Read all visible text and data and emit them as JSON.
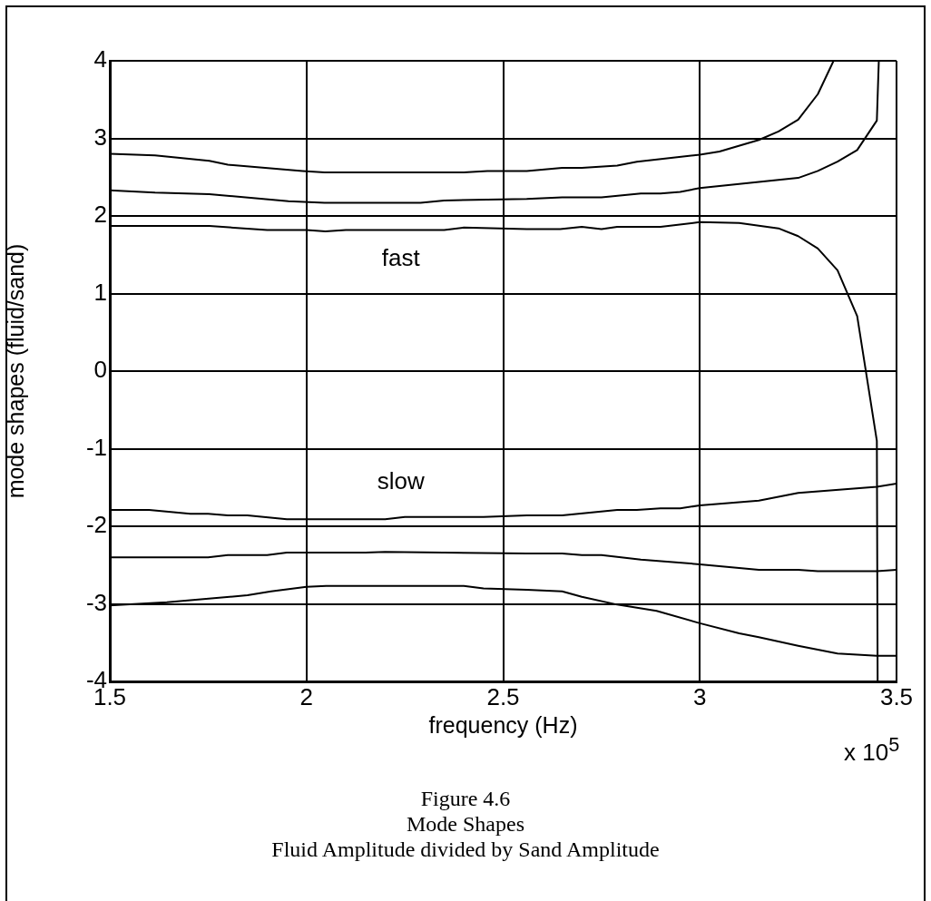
{
  "chart_data": {
    "type": "line",
    "xlabel": "frequency (Hz)",
    "ylabel": "mode shapes (fluid/sand)",
    "xlim": [
      1.5,
      3.5
    ],
    "xticks": [
      1.5,
      2,
      2.5,
      3,
      3.5
    ],
    "ylim": [
      -4,
      4
    ],
    "yticks": [
      -4,
      -3,
      -2,
      -1,
      0,
      1,
      2,
      3,
      4
    ],
    "grid": true,
    "legend": false,
    "marker": "none",
    "line_style": "solid",
    "series": [
      {
        "color": "#000000",
        "x": [
          1.5,
          1.615,
          1.753,
          1.8,
          1.99,
          2.046,
          2.4,
          2.46,
          2.56,
          2.65,
          2.7,
          2.79,
          2.84,
          3.0,
          3.05,
          3.15,
          3.2,
          3.25,
          3.3,
          3.34
        ],
        "values": [
          2.8,
          2.78,
          2.71,
          2.66,
          2.58,
          2.56,
          2.56,
          2.58,
          2.58,
          2.62,
          2.62,
          2.65,
          2.7,
          2.79,
          2.83,
          2.98,
          3.09,
          3.24,
          3.57,
          4
        ]
      },
      {
        "color": "#000000",
        "x": [
          1.5,
          1.615,
          1.753,
          1.954,
          2.046,
          2.29,
          2.35,
          2.56,
          2.65,
          2.75,
          2.85,
          2.9,
          2.95,
          3.0,
          3.25,
          3.3,
          3.35,
          3.4,
          3.45,
          3.455
        ],
        "values": [
          2.33,
          2.3,
          2.28,
          2.19,
          2.17,
          2.17,
          2.2,
          2.22,
          2.24,
          2.24,
          2.29,
          2.29,
          2.31,
          2.36,
          2.49,
          2.58,
          2.7,
          2.85,
          3.23,
          4
        ]
      },
      {
        "color": "#000000",
        "x": [
          1.5,
          1.753,
          1.9,
          2.0,
          2.048,
          2.1,
          2.35,
          2.4,
          2.56,
          2.645,
          2.7,
          2.75,
          2.79,
          2.9,
          3.0,
          3.1,
          3.2,
          3.25,
          3.3,
          3.35,
          3.4,
          3.45,
          3.452
        ],
        "values": [
          1.87,
          1.87,
          1.82,
          1.82,
          1.8,
          1.82,
          1.82,
          1.85,
          1.83,
          1.83,
          1.86,
          1.83,
          1.86,
          1.86,
          1.92,
          1.91,
          1.84,
          1.74,
          1.58,
          1.3,
          0.71,
          -0.9,
          -4
        ]
      },
      {
        "color": "#000000",
        "x": [
          1.5,
          1.6,
          1.705,
          1.75,
          1.8,
          1.85,
          1.95,
          2.2,
          2.25,
          2.45,
          2.56,
          2.65,
          2.79,
          2.84,
          2.9,
          2.95,
          3.0,
          3.15,
          3.25,
          3.45,
          3.5
        ],
        "values": [
          -1.79,
          -1.79,
          -1.84,
          -1.84,
          -1.86,
          -1.86,
          -1.91,
          -1.91,
          -1.88,
          -1.88,
          -1.86,
          -1.86,
          -1.79,
          -1.79,
          -1.77,
          -1.77,
          -1.73,
          -1.67,
          -1.57,
          -1.49,
          -1.45
        ]
      },
      {
        "color": "#000000",
        "x": [
          1.5,
          1.75,
          1.8,
          1.9,
          1.95,
          2.15,
          2.2,
          2.56,
          2.65,
          2.7,
          2.75,
          2.85,
          3.0,
          3.15,
          3.25,
          3.3,
          3.45,
          3.5
        ],
        "values": [
          -2.4,
          -2.4,
          -2.37,
          -2.37,
          -2.34,
          -2.34,
          -2.33,
          -2.35,
          -2.35,
          -2.37,
          -2.37,
          -2.43,
          -2.49,
          -2.56,
          -2.56,
          -2.58,
          -2.58,
          -2.56
        ]
      },
      {
        "color": "#000000",
        "x": [
          1.5,
          1.645,
          1.85,
          1.91,
          2.0,
          2.05,
          2.4,
          2.45,
          2.56,
          2.65,
          2.7,
          2.79,
          2.89,
          3.0,
          3.1,
          3.15,
          3.25,
          3.35,
          3.45,
          3.5
        ],
        "values": [
          -3.02,
          -2.98,
          -2.89,
          -2.84,
          -2.78,
          -2.77,
          -2.77,
          -2.8,
          -2.82,
          -2.84,
          -2.91,
          -3.01,
          -3.09,
          -3.25,
          -3.38,
          -3.43,
          -3.54,
          -3.64,
          -3.67,
          -3.67
        ]
      }
    ],
    "annotations": [
      "fast",
      "slow",
      "x 10$^{5}$",
      "Figure 4.6",
      "Mode Shapes",
      "Fluid Amplitude divided by Sand Amplitude"
    ]
  }
}
